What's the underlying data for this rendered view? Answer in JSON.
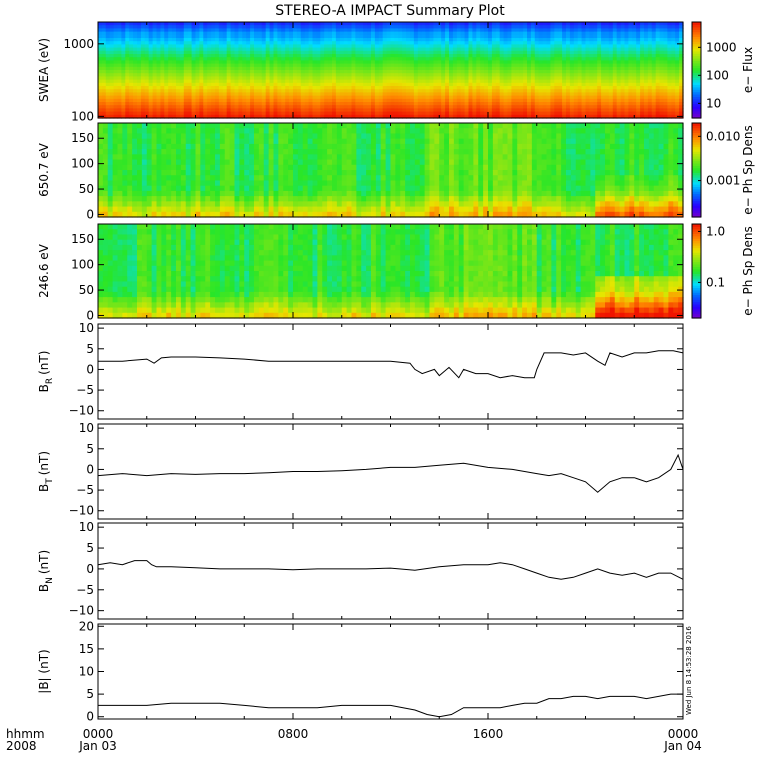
{
  "chart_data": {
    "type": "multi-panel",
    "title": "STEREO-A IMPACT Summary Plot",
    "x_axis": {
      "ticks": [
        {
          "label": "0000",
          "sub": "Jan 03",
          "hour": 0
        },
        {
          "label": "0800",
          "sub": "",
          "hour": 8
        },
        {
          "label": "1600",
          "sub": "",
          "hour": 16
        },
        {
          "label": "0000",
          "sub": "Jan 04",
          "hour": 24
        }
      ],
      "corner_top": "hhmm",
      "corner_bottom": "2008",
      "range_hours": [
        0,
        24
      ]
    },
    "timestamp": "Wed Jun 8 14:53:28 2016",
    "panels": [
      {
        "id": "swea",
        "type": "heatmap",
        "ylabel": "SWEA (eV)",
        "ylog": true,
        "yticks": [
          {
            "v": 100,
            "label": "100"
          },
          {
            "v": 1000,
            "label": "1000"
          }
        ],
        "ylim": [
          95,
          2000
        ],
        "colorbar": {
          "label": "e− Flux",
          "log": true,
          "range": [
            3,
            8000
          ],
          "ticks": [
            {
              "v": 10,
              "label": "10"
            },
            {
              "v": 100,
              "label": "100"
            },
            {
              "v": 1000,
              "label": "1000"
            }
          ]
        }
      },
      {
        "id": "pad650",
        "type": "heatmap",
        "ylabel": "650.7 eV",
        "yticks": [
          {
            "v": 0,
            "label": "0"
          },
          {
            "v": 50,
            "label": "50"
          },
          {
            "v": 100,
            "label": "100"
          },
          {
            "v": 150,
            "label": "150"
          }
        ],
        "ylim": [
          -5,
          180
        ],
        "colorbar": {
          "label": "e− Ph Sp Dens",
          "log": true,
          "range": [
            0.00015,
            0.02
          ],
          "ticks": [
            {
              "v": 0.001,
              "label": "0.001"
            },
            {
              "v": 0.01,
              "label": "0.010"
            }
          ]
        }
      },
      {
        "id": "pad246",
        "type": "heatmap",
        "ylabel": "246.6 eV",
        "yticks": [
          {
            "v": 0,
            "label": "0"
          },
          {
            "v": 50,
            "label": "50"
          },
          {
            "v": 100,
            "label": "100"
          },
          {
            "v": 150,
            "label": "150"
          }
        ],
        "ylim": [
          -5,
          180
        ],
        "colorbar": {
          "label": "e− Ph Sp Dens",
          "log": true,
          "range": [
            0.02,
            1.4
          ],
          "ticks": [
            {
              "v": 0.1,
              "label": "0.1"
            },
            {
              "v": 1.0,
              "label": "1.0"
            }
          ]
        }
      },
      {
        "id": "br",
        "type": "line",
        "ylabel": "B",
        "ylabel_sub": "R",
        "ylabel_unit": "(nT)",
        "ylim": [
          -12,
          11
        ],
        "yticks": [
          {
            "v": -10,
            "label": "−10"
          },
          {
            "v": -5,
            "label": "−5"
          },
          {
            "v": 0,
            "label": "0"
          },
          {
            "v": 5,
            "label": "5"
          },
          {
            "v": 10,
            "label": "10"
          }
        ],
        "x": [
          0,
          1,
          2,
          2.3,
          2.6,
          3,
          4,
          5,
          6,
          7,
          8,
          9,
          10,
          11,
          12,
          12.8,
          13,
          13.3,
          13.8,
          14,
          14.4,
          14.8,
          15,
          15.5,
          16,
          16.5,
          17,
          17.5,
          17.9,
          18,
          18.3,
          19,
          19.5,
          20,
          20.5,
          20.8,
          21,
          21.5,
          22,
          22.5,
          23,
          23.6,
          24
        ],
        "y": [
          2,
          2,
          2.5,
          1.5,
          2.8,
          3,
          3,
          2.8,
          2.5,
          2,
          2,
          2,
          2,
          2,
          2,
          1.5,
          0,
          -1,
          0,
          -1.5,
          0.5,
          -2,
          0,
          -1,
          -1,
          -2,
          -1.5,
          -2,
          -2,
          0,
          4,
          4,
          3.5,
          4,
          2,
          1,
          4,
          3,
          4,
          4,
          4.5,
          4.5,
          4
        ]
      },
      {
        "id": "bt",
        "type": "line",
        "ylabel": "B",
        "ylabel_sub": "T",
        "ylabel_unit": "(nT)",
        "ylim": [
          -12,
          11
        ],
        "yticks": [
          {
            "v": -10,
            "label": "−10"
          },
          {
            "v": -5,
            "label": "−5"
          },
          {
            "v": 0,
            "label": "0"
          },
          {
            "v": 5,
            "label": "5"
          },
          {
            "v": 10,
            "label": "10"
          }
        ],
        "x": [
          0,
          1,
          2,
          3,
          4,
          5,
          6,
          7,
          8,
          9,
          10,
          11,
          12,
          13,
          14,
          15,
          16,
          17,
          18,
          18.5,
          19,
          19.5,
          20,
          20.5,
          21,
          21.5,
          22,
          22.5,
          23,
          23.5,
          23.8,
          24
        ],
        "y": [
          -1.5,
          -1,
          -1.5,
          -1,
          -1.2,
          -1,
          -1,
          -0.8,
          -0.5,
          -0.5,
          -0.3,
          0,
          0.5,
          0.5,
          1,
          1.5,
          0.5,
          0,
          -1,
          -1.5,
          -1,
          -2,
          -3,
          -5.5,
          -3,
          -2,
          -2,
          -3,
          -2,
          0,
          3.5,
          0
        ]
      },
      {
        "id": "bn",
        "type": "line",
        "ylabel": "B",
        "ylabel_sub": "N",
        "ylabel_unit": "(nT)",
        "ylim": [
          -12,
          11
        ],
        "yticks": [
          {
            "v": -10,
            "label": "−10"
          },
          {
            "v": -5,
            "label": "−5"
          },
          {
            "v": 0,
            "label": "0"
          },
          {
            "v": 5,
            "label": "5"
          },
          {
            "v": 10,
            "label": "10"
          }
        ],
        "x": [
          0,
          0.5,
          1,
          1.5,
          2,
          2.2,
          2.4,
          3,
          4,
          5,
          6,
          7,
          8,
          9,
          10,
          11,
          12,
          13,
          14,
          15,
          16,
          16.5,
          17,
          17.5,
          18,
          18.5,
          19,
          19.5,
          20,
          20.5,
          21,
          21.5,
          22,
          22.5,
          23,
          23.5,
          24
        ],
        "y": [
          1,
          1.5,
          1,
          2,
          2,
          1,
          0.5,
          0.5,
          0.3,
          0,
          0,
          0,
          -0.2,
          0,
          0,
          0,
          0.2,
          -0.3,
          0.5,
          1,
          1,
          1.5,
          1,
          0,
          -1,
          -2,
          -2.5,
          -2,
          -1,
          0,
          -1,
          -1.5,
          -1,
          -2,
          -1,
          -1,
          -2.5
        ]
      },
      {
        "id": "bmag",
        "type": "line",
        "ylabel": "|B| (nT)",
        "ylim": [
          -0.5,
          20.5
        ],
        "yticks": [
          {
            "v": 0,
            "label": "0"
          },
          {
            "v": 5,
            "label": "5"
          },
          {
            "v": 10,
            "label": "10"
          },
          {
            "v": 15,
            "label": "15"
          },
          {
            "v": 20,
            "label": "20"
          }
        ],
        "x": [
          0,
          1,
          2,
          3,
          4,
          5,
          6,
          7,
          8,
          9,
          10,
          11,
          12,
          13,
          13.5,
          14,
          14.5,
          15,
          15.5,
          16,
          16.5,
          17,
          17.5,
          18,
          18.5,
          19,
          19.5,
          20,
          20.5,
          21,
          21.5,
          22,
          22.5,
          23,
          23.5,
          24
        ],
        "y": [
          2.5,
          2.5,
          2.5,
          3,
          3,
          3,
          2.5,
          2,
          2,
          2,
          2.5,
          2.5,
          2.5,
          1.5,
          0.5,
          0,
          0.5,
          2,
          2,
          2,
          2,
          2.5,
          3,
          3,
          4,
          4,
          4.5,
          4.5,
          4,
          4.5,
          4.5,
          4.5,
          4,
          4.5,
          5,
          5
        ]
      }
    ]
  }
}
